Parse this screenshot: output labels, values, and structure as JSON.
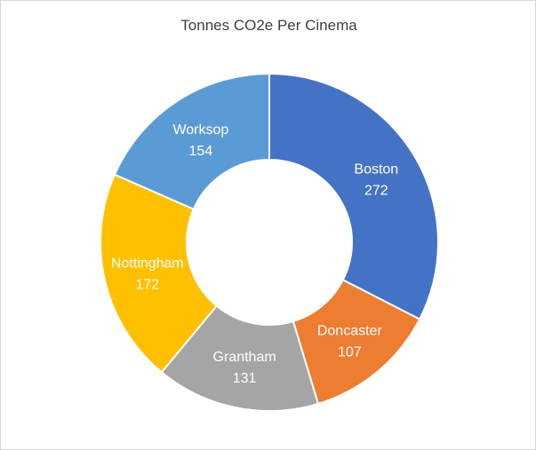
{
  "chart_data": {
    "type": "pie",
    "variant": "doughnut",
    "title": "Tonnes CO2e Per Cinema",
    "categories": [
      "Boston",
      "Doncaster",
      "Grantham",
      "Nottingham",
      "Worksop"
    ],
    "values": [
      272,
      107,
      131,
      172,
      154
    ],
    "colors": [
      "#4472C4",
      "#ED7D31",
      "#A5A5A5",
      "#FFC000",
      "#5B9BD5"
    ],
    "legend": "none",
    "data_labels": "category name and value inside slice"
  }
}
